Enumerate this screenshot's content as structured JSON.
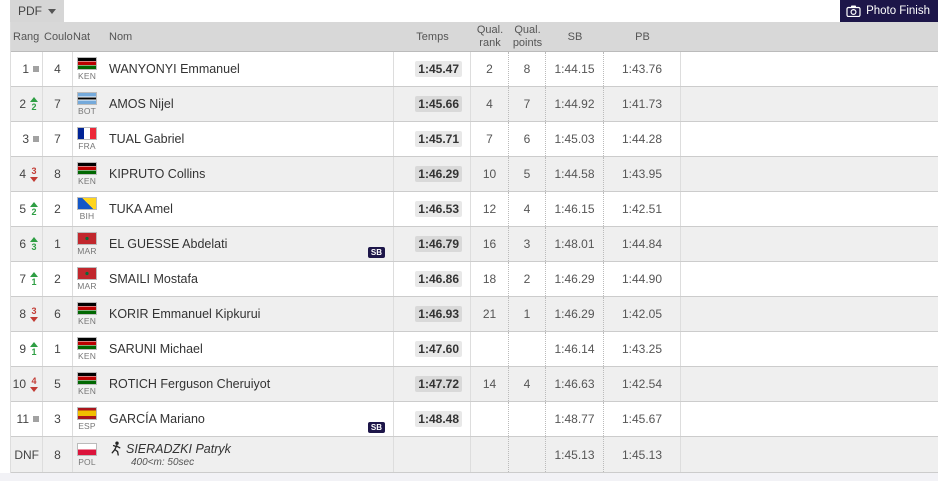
{
  "toolbar": {
    "pdf_label": "PDF",
    "photo_finish_label": "Photo Finish"
  },
  "colors": {
    "accent_navy": "#1d1649",
    "header_bg": "#d8d8d8",
    "row_alt_bg": "#efefef",
    "up_green": "#2e9e43",
    "down_red": "#c23b34",
    "no_change_gray": "#a2a2a2"
  },
  "table": {
    "headers": {
      "rang": "Rang",
      "couloir": "Couloir",
      "nat": "Nat",
      "nom": "Nom",
      "temps": "Temps",
      "qual": "Qual.",
      "qual_rank": "rank",
      "qual_points": "points",
      "sb": "SB",
      "pb": "PB"
    },
    "rows": [
      {
        "rank": "1",
        "change_dir": "same",
        "change_n": "",
        "lane": "4",
        "nat": "KEN",
        "name": "WANYONYI Emmanuel",
        "temps": "1:45.47",
        "qual_rank": "2",
        "qual_points": "8",
        "sb": "1:44.15",
        "pb": "1:43.76",
        "sb_badge": false,
        "dnf": false,
        "note": ""
      },
      {
        "rank": "2",
        "change_dir": "up",
        "change_n": "2",
        "lane": "7",
        "nat": "BOT",
        "name": "AMOS Nijel",
        "temps": "1:45.66",
        "qual_rank": "4",
        "qual_points": "7",
        "sb": "1:44.92",
        "pb": "1:41.73",
        "sb_badge": false,
        "dnf": false,
        "note": ""
      },
      {
        "rank": "3",
        "change_dir": "same",
        "change_n": "",
        "lane": "7",
        "nat": "FRA",
        "name": "TUAL Gabriel",
        "temps": "1:45.71",
        "qual_rank": "7",
        "qual_points": "6",
        "sb": "1:45.03",
        "pb": "1:44.28",
        "sb_badge": false,
        "dnf": false,
        "note": ""
      },
      {
        "rank": "4",
        "change_dir": "down",
        "change_n": "3",
        "lane": "8",
        "nat": "KEN",
        "name": "KIPRUTO Collins",
        "temps": "1:46.29",
        "qual_rank": "10",
        "qual_points": "5",
        "sb": "1:44.58",
        "pb": "1:43.95",
        "sb_badge": false,
        "dnf": false,
        "note": ""
      },
      {
        "rank": "5",
        "change_dir": "up",
        "change_n": "2",
        "lane": "2",
        "nat": "BIH",
        "name": "TUKA Amel",
        "temps": "1:46.53",
        "qual_rank": "12",
        "qual_points": "4",
        "sb": "1:46.15",
        "pb": "1:42.51",
        "sb_badge": false,
        "dnf": false,
        "note": ""
      },
      {
        "rank": "6",
        "change_dir": "up",
        "change_n": "3",
        "lane": "1",
        "nat": "MAR",
        "name": "EL GUESSE Abdelati",
        "temps": "1:46.79",
        "qual_rank": "16",
        "qual_points": "3",
        "sb": "1:48.01",
        "pb": "1:44.84",
        "sb_badge": true,
        "dnf": false,
        "note": ""
      },
      {
        "rank": "7",
        "change_dir": "up",
        "change_n": "1",
        "lane": "2",
        "nat": "MAR",
        "name": "SMAILI Mostafa",
        "temps": "1:46.86",
        "qual_rank": "18",
        "qual_points": "2",
        "sb": "1:46.29",
        "pb": "1:44.90",
        "sb_badge": false,
        "dnf": false,
        "note": ""
      },
      {
        "rank": "8",
        "change_dir": "down",
        "change_n": "3",
        "lane": "6",
        "nat": "KEN",
        "name": "KORIR Emmanuel Kipkurui",
        "temps": "1:46.93",
        "qual_rank": "21",
        "qual_points": "1",
        "sb": "1:46.29",
        "pb": "1:42.05",
        "sb_badge": false,
        "dnf": false,
        "note": ""
      },
      {
        "rank": "9",
        "change_dir": "up",
        "change_n": "1",
        "lane": "1",
        "nat": "KEN",
        "name": "SARUNI Michael",
        "temps": "1:47.60",
        "qual_rank": "",
        "qual_points": "",
        "sb": "1:46.14",
        "pb": "1:43.25",
        "sb_badge": false,
        "dnf": false,
        "note": ""
      },
      {
        "rank": "10",
        "change_dir": "down",
        "change_n": "4",
        "lane": "5",
        "nat": "KEN",
        "name": "ROTICH Ferguson Cheruiyot",
        "temps": "1:47.72",
        "qual_rank": "14",
        "qual_points": "4",
        "sb": "1:46.63",
        "pb": "1:42.54",
        "sb_badge": false,
        "dnf": false,
        "note": ""
      },
      {
        "rank": "11",
        "change_dir": "same",
        "change_n": "",
        "lane": "3",
        "nat": "ESP",
        "name": "GARCÍA Mariano",
        "temps": "1:48.48",
        "qual_rank": "",
        "qual_points": "",
        "sb": "1:48.77",
        "pb": "1:45.67",
        "sb_badge": true,
        "dnf": false,
        "note": ""
      },
      {
        "rank": "DNF",
        "change_dir": "none",
        "change_n": "",
        "lane": "8",
        "nat": "POL",
        "name": "SIERADZKI Patryk",
        "temps": "",
        "qual_rank": "",
        "qual_points": "",
        "sb": "1:45.13",
        "pb": "1:45.13",
        "sb_badge": false,
        "dnf": true,
        "note": "400<m: 50sec"
      }
    ]
  }
}
